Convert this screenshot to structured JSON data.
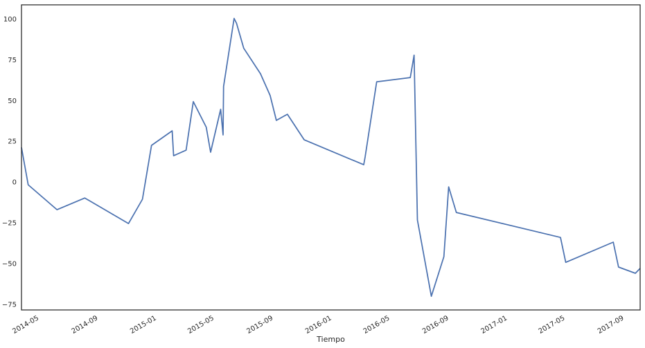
{
  "chart_data": {
    "type": "line",
    "title": "",
    "xlabel": "Tiempo",
    "ylabel": "",
    "ylim": [
      -78.5,
      108.7
    ],
    "xlim": [
      "2014-03-28",
      "2017-10-07"
    ],
    "grid": false,
    "line_color": "#4c72b0",
    "yticks": [
      -75,
      -50,
      -25,
      0,
      25,
      50,
      75,
      100
    ],
    "ytick_labels": [
      "−75",
      "−50",
      "−25",
      "0",
      "25",
      "50",
      "75",
      "100"
    ],
    "xticks": [
      "2014-05-01",
      "2014-09-01",
      "2015-01-01",
      "2015-05-01",
      "2015-09-01",
      "2016-01-01",
      "2016-05-01",
      "2016-09-01",
      "2017-01-01",
      "2017-05-01",
      "2017-09-01"
    ],
    "xtick_labels": [
      "2014-05",
      "2014-09",
      "2015-01",
      "2015-05",
      "2015-09",
      "2016-01",
      "2016-05",
      "2016-09",
      "2017-01",
      "2017-05",
      "2017-09"
    ],
    "series": [
      {
        "x": [
          "2014-03-28",
          "2014-04-11",
          "2014-06-10",
          "2014-08-07",
          "2014-11-06",
          "2014-12-05",
          "2014-12-24",
          "2015-02-05",
          "2015-02-08",
          "2015-03-06",
          "2015-03-21",
          "2015-04-17",
          "2015-04-26",
          "2015-05-17",
          "2015-05-22",
          "2015-05-23",
          "2015-06-14",
          "2015-06-19",
          "2015-07-04",
          "2015-08-08",
          "2015-08-28",
          "2015-09-10",
          "2015-10-03",
          "2015-11-07",
          "2016-03-10",
          "2016-03-13",
          "2016-04-06",
          "2016-06-15",
          "2016-06-23",
          "2016-06-30",
          "2016-07-29",
          "2016-08-24",
          "2016-09-03",
          "2016-09-19",
          "2017-04-24",
          "2017-05-05",
          "2017-08-12",
          "2017-08-23",
          "2017-09-27",
          "2017-10-07"
        ],
        "y": [
          21.2,
          -1.7,
          -17.0,
          -9.8,
          -25.5,
          -10.6,
          22.5,
          31.4,
          16.1,
          19.5,
          49.3,
          33.6,
          18.3,
          44.6,
          28.9,
          58.6,
          100.4,
          97.4,
          82.1,
          66.4,
          53.1,
          37.8,
          41.6,
          25.9,
          10.6,
          15.3,
          61.5,
          64.1,
          77.8,
          -23.3,
          -70.1,
          -45.8,
          -3.0,
          -18.7,
          -34.0,
          -49.3,
          -36.9,
          -52.2,
          -56.0,
          -53.0
        ]
      }
    ]
  }
}
